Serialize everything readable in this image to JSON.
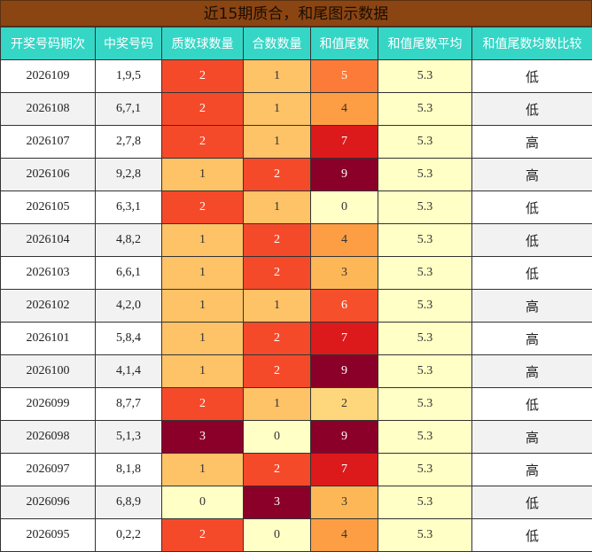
{
  "title": "近15期质合，和尾图示数据",
  "headers": [
    "开奖号码期次",
    "中奖号码",
    "质数球数量",
    "合数数量",
    "和值尾数",
    "和值尾数平均",
    "和值尾数均数比较"
  ],
  "rows": [
    {
      "period": "2026109",
      "numbers": "1,9,5",
      "prime": "2",
      "composite": "1",
      "tail": "5",
      "avg": "5.3",
      "cmp": "低"
    },
    {
      "period": "2026108",
      "numbers": "6,7,1",
      "prime": "2",
      "composite": "1",
      "tail": "4",
      "avg": "5.3",
      "cmp": "低"
    },
    {
      "period": "2026107",
      "numbers": "2,7,8",
      "prime": "2",
      "composite": "1",
      "tail": "7",
      "avg": "5.3",
      "cmp": "高"
    },
    {
      "period": "2026106",
      "numbers": "9,2,8",
      "prime": "1",
      "composite": "2",
      "tail": "9",
      "avg": "5.3",
      "cmp": "高"
    },
    {
      "period": "2026105",
      "numbers": "6,3,1",
      "prime": "2",
      "composite": "1",
      "tail": "0",
      "avg": "5.3",
      "cmp": "低"
    },
    {
      "period": "2026104",
      "numbers": "4,8,2",
      "prime": "1",
      "composite": "2",
      "tail": "4",
      "avg": "5.3",
      "cmp": "低"
    },
    {
      "period": "2026103",
      "numbers": "6,6,1",
      "prime": "1",
      "composite": "2",
      "tail": "3",
      "avg": "5.3",
      "cmp": "低"
    },
    {
      "period": "2026102",
      "numbers": "4,2,0",
      "prime": "1",
      "composite": "1",
      "tail": "6",
      "avg": "5.3",
      "cmp": "高"
    },
    {
      "period": "2026101",
      "numbers": "5,8,4",
      "prime": "1",
      "composite": "2",
      "tail": "7",
      "avg": "5.3",
      "cmp": "高"
    },
    {
      "period": "2026100",
      "numbers": "4,1,4",
      "prime": "1",
      "composite": "2",
      "tail": "9",
      "avg": "5.3",
      "cmp": "高"
    },
    {
      "period": "2026099",
      "numbers": "8,7,7",
      "prime": "2",
      "composite": "1",
      "tail": "2",
      "avg": "5.3",
      "cmp": "低"
    },
    {
      "period": "2026098",
      "numbers": "5,1,3",
      "prime": "3",
      "composite": "0",
      "tail": "9",
      "avg": "5.3",
      "cmp": "高"
    },
    {
      "period": "2026097",
      "numbers": "8,1,8",
      "prime": "1",
      "composite": "2",
      "tail": "7",
      "avg": "5.3",
      "cmp": "高"
    },
    {
      "period": "2026096",
      "numbers": "6,8,9",
      "prime": "0",
      "composite": "3",
      "tail": "3",
      "avg": "5.3",
      "cmp": "低"
    },
    {
      "period": "2026095",
      "numbers": "0,2,2",
      "prime": "2",
      "composite": "0",
      "tail": "4",
      "avg": "5.3",
      "cmp": "低"
    }
  ]
}
